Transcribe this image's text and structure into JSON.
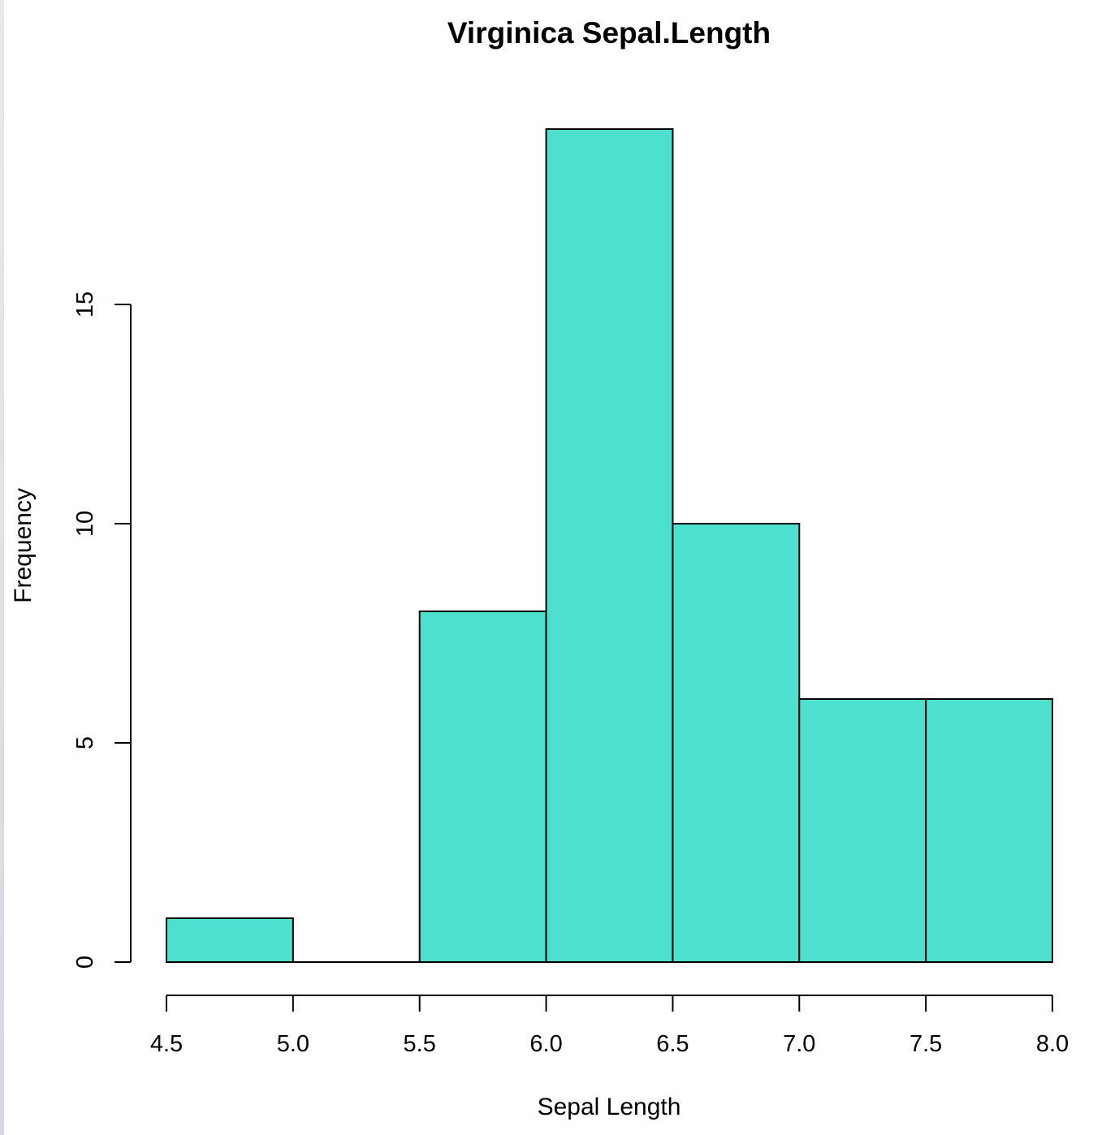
{
  "chart_data": {
    "type": "bar",
    "title": "Virginica Sepal.Length",
    "xlabel": "Sepal Length",
    "ylabel": "Frequency",
    "bins": [
      {
        "from": 4.5,
        "to": 5.0,
        "count": 1
      },
      {
        "from": 5.0,
        "to": 5.5,
        "count": 0
      },
      {
        "from": 5.5,
        "to": 6.0,
        "count": 8
      },
      {
        "from": 6.0,
        "to": 6.5,
        "count": 19
      },
      {
        "from": 6.5,
        "to": 7.0,
        "count": 10
      },
      {
        "from": 7.0,
        "to": 7.5,
        "count": 6
      },
      {
        "from": 7.5,
        "to": 8.0,
        "count": 6
      }
    ],
    "xlim": [
      4.5,
      8.0
    ],
    "ylim": [
      0,
      19
    ],
    "x_ticks": [
      "4.5",
      "5.0",
      "5.5",
      "6.0",
      "6.5",
      "7.0",
      "7.5",
      "8.0"
    ],
    "y_ticks": [
      "0",
      "5",
      "10",
      "15"
    ],
    "bar_color": "#4ee0cf",
    "grid": false
  }
}
